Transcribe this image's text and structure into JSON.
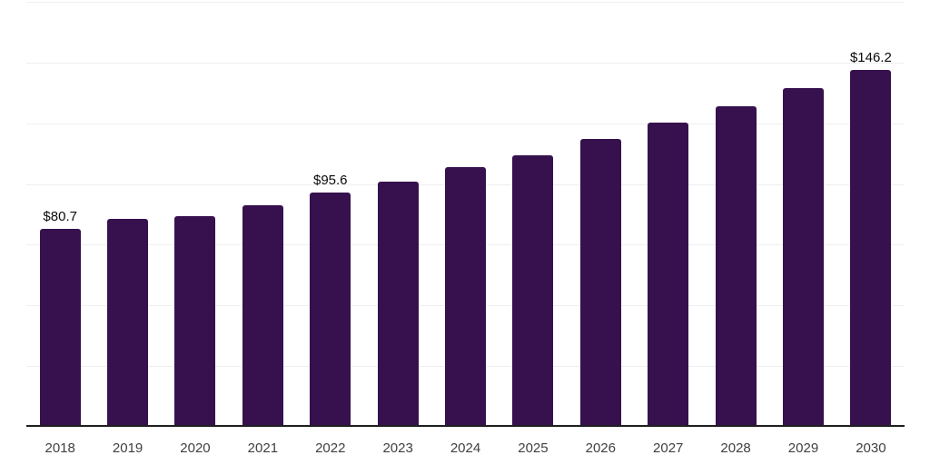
{
  "page": {
    "background_color": "#ffffff"
  },
  "chart": {
    "bar_color": "#36114e",
    "gridline_color": "#efefef",
    "axis_line_color": "#1f1f1f",
    "value_label_color": "#0a0a0a",
    "tick_label_color": "#404040"
  },
  "chart_data": {
    "type": "bar",
    "title": "",
    "xlabel": "",
    "ylabel": "",
    "categories": [
      "2018",
      "2019",
      "2020",
      "2021",
      "2022",
      "2023",
      "2024",
      "2025",
      "2026",
      "2027",
      "2028",
      "2029",
      "2030"
    ],
    "values": [
      80.7,
      84.8,
      86.1,
      90.4,
      95.6,
      100.3,
      106.1,
      111.1,
      117.9,
      124.6,
      131.2,
      138.7,
      146.2
    ],
    "data_labels": [
      {
        "category": "2018",
        "text": "$80.7"
      },
      {
        "category": "2022",
        "text": "$95.6"
      },
      {
        "category": "2030",
        "text": "$146.2"
      }
    ],
    "ylim": [
      0,
      175
    ],
    "grid_step": 25,
    "grid": "horizontal",
    "legend": "none",
    "y_axis_labels_visible": false
  }
}
